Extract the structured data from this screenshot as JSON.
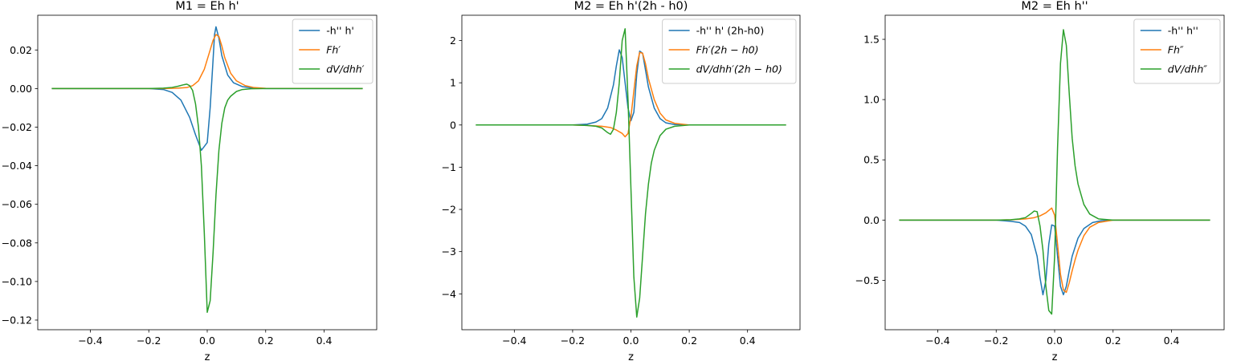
{
  "chart_data": [
    {
      "type": "line",
      "title": "M1 = Eh h'",
      "xlabel": "z",
      "ylabel": "",
      "xlim": [
        -0.58,
        0.58
      ],
      "ylim": [
        -0.125,
        0.038
      ],
      "xticks": [
        -0.4,
        -0.2,
        0.0,
        0.2,
        0.4
      ],
      "xtick_labels": [
        "−0.4",
        "−0.2",
        "0.0",
        "0.2",
        "0.4"
      ],
      "yticks": [
        0.02,
        0.0,
        -0.02,
        -0.04,
        -0.06,
        -0.08,
        -0.1,
        -0.12
      ],
      "ytick_labels": [
        "0.02",
        "0.00",
        "−0.02",
        "−0.04",
        "−0.06",
        "−0.08",
        "−0.10",
        "−0.12"
      ],
      "legend_position": "top-right",
      "grid": false,
      "series": [
        {
          "name": "-h'' h'",
          "color": "#1f77b4",
          "x": [
            -0.53,
            -0.2,
            -0.15,
            -0.12,
            -0.09,
            -0.06,
            -0.04,
            -0.02,
            0.0,
            0.01,
            0.02,
            0.025,
            0.03,
            0.04,
            0.05,
            0.07,
            0.09,
            0.12,
            0.16,
            0.2,
            0.53
          ],
          "y": [
            0.0,
            0.0,
            -0.0005,
            -0.002,
            -0.006,
            -0.015,
            -0.024,
            -0.032,
            -0.028,
            -0.01,
            0.015,
            0.028,
            0.032,
            0.026,
            0.017,
            0.007,
            0.003,
            0.001,
            0.0002,
            0.0,
            0.0
          ]
        },
        {
          "name": "Fh′",
          "color": "#ff7f0e",
          "x": [
            -0.53,
            -0.2,
            -0.15,
            -0.1,
            -0.07,
            -0.05,
            -0.03,
            -0.01,
            0.0,
            0.01,
            0.02,
            0.03,
            0.04,
            0.05,
            0.06,
            0.08,
            0.1,
            0.13,
            0.16,
            0.2,
            0.53
          ],
          "y": [
            0.0,
            0.0,
            0.0,
            0.0002,
            0.0005,
            0.0015,
            0.004,
            0.01,
            0.015,
            0.02,
            0.025,
            0.028,
            0.027,
            0.022,
            0.016,
            0.008,
            0.004,
            0.0015,
            0.0005,
            0.0001,
            0.0
          ]
        },
        {
          "name": "dV/dhh′",
          "color": "#2ca02c",
          "x": [
            -0.53,
            -0.2,
            -0.15,
            -0.12,
            -0.1,
            -0.08,
            -0.07,
            -0.06,
            -0.05,
            -0.04,
            -0.03,
            -0.02,
            -0.01,
            0.0,
            0.01,
            0.02,
            0.03,
            0.04,
            0.05,
            0.06,
            0.07,
            0.08,
            0.1,
            0.12,
            0.15,
            0.2,
            0.53
          ],
          "y": [
            0.0,
            0.0,
            0.0002,
            0.0006,
            0.0012,
            0.002,
            0.0023,
            0.0015,
            -0.001,
            -0.008,
            -0.02,
            -0.04,
            -0.075,
            -0.116,
            -0.11,
            -0.085,
            -0.055,
            -0.032,
            -0.018,
            -0.01,
            -0.006,
            -0.004,
            -0.0015,
            -0.0005,
            -0.0001,
            0.0,
            0.0
          ]
        }
      ]
    },
    {
      "type": "line",
      "title": "M2 = Eh h'(2h - h0)",
      "xlabel": "z",
      "ylabel": "",
      "xlim": [
        -0.58,
        0.58
      ],
      "ylim": [
        -4.85,
        2.6
      ],
      "xticks": [
        -0.4,
        -0.2,
        0.0,
        0.2,
        0.4
      ],
      "xtick_labels": [
        "−0.4",
        "−0.2",
        "0.0",
        "0.2",
        "0.4"
      ],
      "yticks": [
        2,
        1,
        0,
        -1,
        -2,
        -3,
        -4
      ],
      "ytick_labels": [
        "2",
        "1",
        "0",
        "−1",
        "−2",
        "−3",
        "−4"
      ],
      "legend_position": "top-right",
      "grid": false,
      "series": [
        {
          "name": "-h'' h' (2h-h0)",
          "color": "#1f77b4",
          "x": [
            -0.53,
            -0.2,
            -0.15,
            -0.12,
            -0.1,
            -0.08,
            -0.06,
            -0.05,
            -0.04,
            -0.03,
            -0.02,
            -0.01,
            0.0,
            0.01,
            0.02,
            0.03,
            0.04,
            0.05,
            0.06,
            0.08,
            0.1,
            0.12,
            0.15,
            0.2,
            0.53
          ],
          "y": [
            0.0,
            0.0,
            0.02,
            0.07,
            0.15,
            0.4,
            0.95,
            1.4,
            1.78,
            1.6,
            1.0,
            0.4,
            0.1,
            0.3,
            1.2,
            1.75,
            1.7,
            1.3,
            0.9,
            0.4,
            0.15,
            0.05,
            0.01,
            0.0,
            0.0
          ]
        },
        {
          "name": "Fh′(2h − h0)",
          "color": "#ff7f0e",
          "x": [
            -0.53,
            -0.2,
            -0.15,
            -0.1,
            -0.07,
            -0.05,
            -0.03,
            -0.02,
            -0.01,
            0.0,
            0.01,
            0.02,
            0.03,
            0.04,
            0.05,
            0.06,
            0.08,
            0.1,
            0.12,
            0.15,
            0.2,
            0.53
          ],
          "y": [
            0.0,
            0.0,
            -0.01,
            -0.03,
            -0.06,
            -0.12,
            -0.2,
            -0.28,
            -0.2,
            0.2,
            0.8,
            1.4,
            1.72,
            1.7,
            1.45,
            1.1,
            0.6,
            0.28,
            0.12,
            0.04,
            0.0,
            0.0
          ]
        },
        {
          "name": "dV/dhh′(2h − h0)",
          "color": "#2ca02c",
          "x": [
            -0.53,
            -0.2,
            -0.15,
            -0.12,
            -0.1,
            -0.08,
            -0.07,
            -0.06,
            -0.05,
            -0.04,
            -0.03,
            -0.02,
            -0.01,
            0.0,
            0.01,
            0.02,
            0.03,
            0.04,
            0.05,
            0.06,
            0.07,
            0.08,
            0.1,
            0.12,
            0.15,
            0.2,
            0.53
          ],
          "y": [
            0.0,
            0.0,
            -0.01,
            -0.03,
            -0.07,
            -0.18,
            -0.22,
            -0.1,
            0.3,
            1.0,
            2.0,
            2.28,
            0.6,
            -1.5,
            -3.6,
            -4.55,
            -4.1,
            -3.1,
            -2.1,
            -1.4,
            -0.9,
            -0.6,
            -0.25,
            -0.1,
            -0.03,
            0.0,
            0.0
          ]
        }
      ]
    },
    {
      "type": "line",
      "title": "M2 = Eh h''",
      "xlabel": "z",
      "ylabel": "",
      "xlim": [
        -0.58,
        0.58
      ],
      "ylim": [
        -0.91,
        1.7
      ],
      "xticks": [
        -0.4,
        -0.2,
        0.0,
        0.2,
        0.4
      ],
      "xtick_labels": [
        "−0.4",
        "−0.2",
        "0.0",
        "0.2",
        "0.4"
      ],
      "yticks": [
        1.5,
        1.0,
        0.5,
        0.0,
        -0.5
      ],
      "ytick_labels": [
        "1.5",
        "1.0",
        "0.5",
        "0.0",
        "−0.5"
      ],
      "legend_position": "top-right",
      "grid": false,
      "series": [
        {
          "name": "-h'' h''",
          "color": "#1f77b4",
          "x": [
            -0.53,
            -0.2,
            -0.15,
            -0.12,
            -0.1,
            -0.08,
            -0.06,
            -0.05,
            -0.04,
            -0.03,
            -0.02,
            -0.01,
            0.0,
            0.01,
            0.02,
            0.03,
            0.04,
            0.05,
            0.06,
            0.08,
            0.1,
            0.13,
            0.16,
            0.2,
            0.53
          ],
          "y": [
            0.0,
            0.0,
            -0.01,
            -0.02,
            -0.05,
            -0.12,
            -0.3,
            -0.48,
            -0.62,
            -0.5,
            -0.2,
            -0.04,
            -0.05,
            -0.3,
            -0.55,
            -0.62,
            -0.55,
            -0.42,
            -0.3,
            -0.15,
            -0.07,
            -0.02,
            -0.005,
            0.0,
            0.0
          ]
        },
        {
          "name": "Fh″",
          "color": "#ff7f0e",
          "x": [
            -0.53,
            -0.2,
            -0.15,
            -0.1,
            -0.07,
            -0.05,
            -0.03,
            -0.02,
            -0.01,
            0.0,
            0.01,
            0.02,
            0.03,
            0.04,
            0.05,
            0.06,
            0.07,
            0.08,
            0.1,
            0.12,
            0.15,
            0.2,
            0.53
          ],
          "y": [
            0.0,
            0.0,
            0.002,
            0.01,
            0.02,
            0.035,
            0.06,
            0.08,
            0.1,
            0.04,
            -0.2,
            -0.45,
            -0.58,
            -0.6,
            -0.52,
            -0.42,
            -0.33,
            -0.25,
            -0.13,
            -0.06,
            -0.02,
            0.0,
            0.0
          ]
        },
        {
          "name": "dV/dhh″",
          "color": "#2ca02c",
          "x": [
            -0.53,
            -0.2,
            -0.15,
            -0.12,
            -0.1,
            -0.08,
            -0.07,
            -0.06,
            -0.05,
            -0.04,
            -0.03,
            -0.02,
            -0.01,
            0.0,
            0.01,
            0.02,
            0.03,
            0.04,
            0.05,
            0.06,
            0.07,
            0.08,
            0.1,
            0.12,
            0.15,
            0.2,
            0.53
          ],
          "y": [
            0.0,
            0.0,
            0.003,
            0.01,
            0.02,
            0.055,
            0.075,
            0.07,
            -0.05,
            -0.25,
            -0.55,
            -0.75,
            -0.78,
            -0.3,
            0.6,
            1.3,
            1.58,
            1.45,
            1.05,
            0.68,
            0.45,
            0.3,
            0.13,
            0.05,
            0.01,
            0.0,
            0.0
          ]
        }
      ]
    }
  ]
}
